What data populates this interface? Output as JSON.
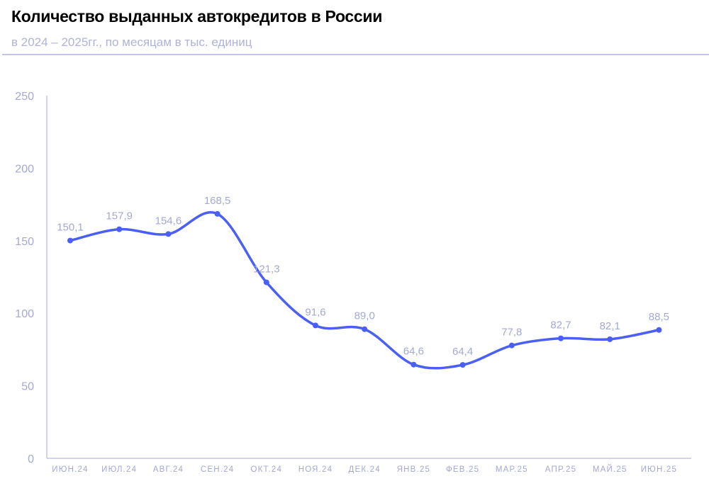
{
  "chart_data": {
    "type": "line",
    "title": "Количество выданных автокредитов в России",
    "subtitle": "в 2024 – 2025гг., по месяцам в тыс. единиц",
    "xlabel": "",
    "ylabel": "",
    "ylim": [
      0,
      250
    ],
    "yticks": [
      "0",
      "50",
      "100",
      "150",
      "200",
      "250"
    ],
    "grid": false,
    "categories": [
      "ИЮН.24",
      "ИЮЛ.24",
      "АВГ.24",
      "СЕН.24",
      "ОКТ.24",
      "НОЯ.24",
      "ДЕК.24",
      "ЯНВ.25",
      "ФЕВ.25",
      "МАР.25",
      "АПР.25",
      "МАЙ.25",
      "ИЮН.25"
    ],
    "values": [
      150.1,
      157.9,
      154.6,
      168.5,
      121.3,
      91.6,
      89.0,
      64.6,
      64.4,
      77.8,
      82.7,
      82.1,
      88.5
    ],
    "labels": [
      "150,1",
      "157,9",
      "154,6",
      "168,5",
      "121,3",
      "91,6",
      "89,0",
      "64,6",
      "64,4",
      "77,8",
      "82,7",
      "82,1",
      "88,5"
    ],
    "colors": {
      "line": "#4a5ff5",
      "axis": "#c2c5e3",
      "text": "#a4a8d2"
    }
  }
}
